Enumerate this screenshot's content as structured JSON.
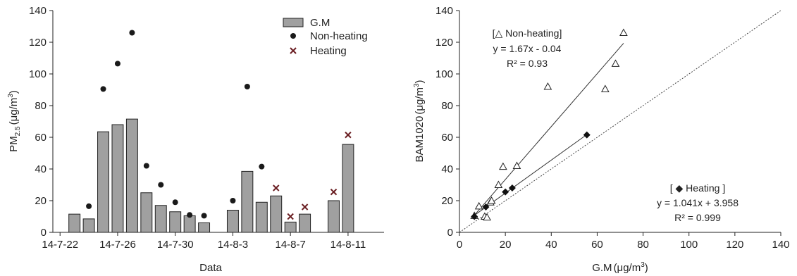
{
  "chart_data": [
    {
      "type": "bar",
      "xlabel": "Data",
      "ylabel": "PM2.5 (μg/m3)",
      "ylabel_parts": {
        "main": "PM",
        "sub": "2.5",
        "paren": "(μg/m",
        "sup": "3",
        "close": ")"
      },
      "ylim": [
        0,
        140
      ],
      "yticks": [
        0,
        20,
        40,
        60,
        80,
        100,
        120,
        140
      ],
      "xticks": [
        {
          "label": "14-7-22",
          "index": 0
        },
        {
          "label": "14-7-26",
          "index": 4
        },
        {
          "label": "14-7-30",
          "index": 8
        },
        {
          "label": "14-8-3",
          "index": 12
        },
        {
          "label": "14-8-7",
          "index": 16
        },
        {
          "label": "14-8-11",
          "index": 20
        }
      ],
      "n_slots": 23,
      "legend": {
        "placement": "top-right",
        "entries": [
          "G.M",
          "Non-heating",
          "Heating"
        ]
      },
      "series": [
        {
          "name": "G.M",
          "kind": "bar",
          "color": "#a0a0a0",
          "values": [
            null,
            11.5,
            8.5,
            63.5,
            68.0,
            71.5,
            25.0,
            17.0,
            13.0,
            10.5,
            6.0,
            null,
            14.0,
            38.5,
            19.0,
            23.0,
            6.5,
            11.5,
            null,
            20.0,
            55.5,
            null,
            null
          ]
        },
        {
          "name": "Non-heating",
          "kind": "scatter",
          "marker": "circle",
          "color": "#1a1a1a",
          "values": [
            null,
            null,
            16.5,
            90.5,
            106.5,
            126.0,
            42.0,
            30.0,
            19.0,
            11.0,
            10.5,
            null,
            20.0,
            92.0,
            41.5,
            null,
            null,
            null,
            null,
            null,
            null,
            null,
            null
          ]
        },
        {
          "name": "Heating",
          "kind": "scatter",
          "marker": "x",
          "color": "#6b1f23",
          "values": [
            null,
            null,
            null,
            null,
            null,
            null,
            null,
            null,
            null,
            null,
            null,
            null,
            null,
            null,
            null,
            28.0,
            10.0,
            16.0,
            null,
            25.5,
            61.5,
            null,
            null
          ]
        }
      ]
    },
    {
      "type": "scatter",
      "xlabel": "G.M (μg/m3)",
      "xlabel_parts": {
        "main": "G.M",
        "paren": "(μg/m",
        "sup": "3",
        "close": ")"
      },
      "ylabel": "BAM1020 (μg/m3)",
      "ylabel_parts": {
        "main": "BAM1020",
        "paren": "(μg/m",
        "sup": "3",
        "close": ")"
      },
      "xlim": [
        0,
        140
      ],
      "ylim": [
        0,
        140
      ],
      "xticks": [
        0,
        20,
        40,
        60,
        80,
        100,
        120,
        140
      ],
      "yticks": [
        0,
        20,
        40,
        60,
        80,
        100,
        120,
        140
      ],
      "one_to_one_line": true,
      "series": [
        {
          "name": "Non-heating",
          "marker": "triangle-open",
          "points": [
            [
              6.5,
              10.5
            ],
            [
              8.5,
              16.5
            ],
            [
              11.0,
              10.0
            ],
            [
              12.0,
              9.5
            ],
            [
              13.5,
              19.0
            ],
            [
              14.0,
              20.0
            ],
            [
              17.0,
              30.0
            ],
            [
              19.0,
              41.5
            ],
            [
              25.0,
              42.0
            ],
            [
              38.5,
              92.0
            ],
            [
              63.5,
              90.5
            ],
            [
              68.0,
              106.5
            ],
            [
              71.5,
              126.0
            ]
          ],
          "fit": {
            "slope": 1.67,
            "intercept": -0.04,
            "x_range": [
              6.5,
              71.5
            ]
          }
        },
        {
          "name": "Heating",
          "marker": "diamond-filled",
          "points": [
            [
              6.5,
              10.0
            ],
            [
              11.5,
              16.0
            ],
            [
              20.0,
              25.5
            ],
            [
              23.0,
              28.0
            ],
            [
              55.5,
              61.5
            ]
          ],
          "fit": {
            "slope": 1.041,
            "intercept": 3.958,
            "x_range": [
              5.5,
              55.5
            ]
          }
        }
      ],
      "annotations": {
        "non_heating": {
          "title": "[△  Non-heating]",
          "equation": "y = 1.67x - 0.04",
          "r2": "R² = 0.93"
        },
        "heating": {
          "title": "[ ◆  Heating ]",
          "equation": "y = 1.041x + 3.958",
          "r2": "R² = 0.999"
        }
      }
    }
  ]
}
